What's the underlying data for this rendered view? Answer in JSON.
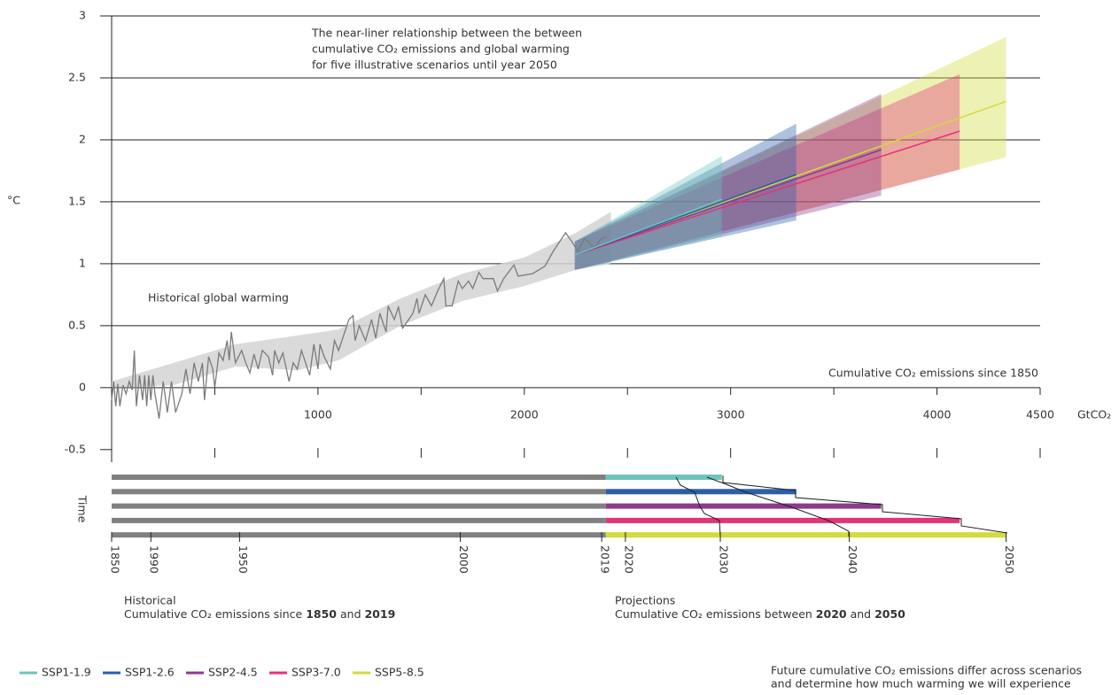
{
  "chart_data": {
    "type": "line",
    "annotation": [
      "The near-liner relationship between the between",
      "cumulative CO₂ emissions and global warming",
      "for five illustrative scenarios until year 2050"
    ],
    "ylabel": "°C",
    "xlabel": "GtCO₂",
    "x_axis_title": "Cumulative CO₂ emissions since 1850",
    "historical_label": "Historical global warming",
    "ylim": [
      -0.6,
      3
    ],
    "yticks": [
      -0.5,
      0,
      0.5,
      1,
      1.5,
      2,
      2.5,
      3
    ],
    "grid": true,
    "xlim": [
      0,
      4500
    ],
    "xticks": [
      1000,
      2000,
      3000,
      4000,
      4500
    ],
    "xminorticks": [
      500,
      1500,
      2500,
      3500
    ],
    "historical": {
      "color": "#7a7a7a",
      "x": [
        0,
        10,
        20,
        30,
        40,
        55,
        70,
        85,
        100,
        110,
        120,
        135,
        150,
        160,
        170,
        180,
        190,
        200,
        210,
        230,
        250,
        270,
        290,
        310,
        340,
        360,
        380,
        400,
        420,
        440,
        450,
        470,
        490,
        500,
        520,
        540,
        560,
        570,
        580,
        600,
        630,
        650,
        670,
        690,
        710,
        730,
        760,
        780,
        790,
        810,
        830,
        860,
        880,
        900,
        920,
        940,
        960,
        980,
        1000,
        1010,
        1030,
        1060,
        1080,
        1100,
        1130,
        1150,
        1170,
        1180,
        1200,
        1230,
        1260,
        1280,
        1300,
        1330,
        1340,
        1370,
        1390,
        1410,
        1440,
        1460,
        1480,
        1490,
        1520,
        1550,
        1580,
        1610,
        1620,
        1650,
        1680,
        1700,
        1730,
        1750,
        1780,
        1800,
        1850,
        1870,
        1900,
        1950,
        1970,
        2040,
        2100,
        2140,
        2180,
        2200,
        2230,
        2260,
        2290,
        2310,
        2340,
        2370,
        2400
      ],
      "values": [
        -0.1,
        0.05,
        -0.15,
        0.03,
        -0.15,
        0.02,
        -0.05,
        0.05,
        -0.02,
        0.3,
        -0.15,
        0.1,
        -0.1,
        0.1,
        -0.15,
        0.1,
        -0.1,
        0.1,
        -0.05,
        -0.25,
        0.05,
        -0.2,
        0.05,
        -0.2,
        -0.05,
        0.15,
        -0.05,
        0.2,
        0.05,
        0.2,
        -0.1,
        0.25,
        0.15,
        0.0,
        0.28,
        0.22,
        0.38,
        0.22,
        0.45,
        0.2,
        0.3,
        0.2,
        0.12,
        0.27,
        0.15,
        0.3,
        0.25,
        0.1,
        0.3,
        0.2,
        0.28,
        0.05,
        0.2,
        0.15,
        0.3,
        0.2,
        0.1,
        0.35,
        0.15,
        0.35,
        0.25,
        0.15,
        0.38,
        0.3,
        0.45,
        0.55,
        0.58,
        0.38,
        0.5,
        0.38,
        0.55,
        0.4,
        0.6,
        0.45,
        0.66,
        0.55,
        0.65,
        0.48,
        0.55,
        0.6,
        0.72,
        0.6,
        0.75,
        0.66,
        0.78,
        0.88,
        0.66,
        0.66,
        0.86,
        0.8,
        0.86,
        0.8,
        0.93,
        0.88,
        0.88,
        0.78,
        0.88,
        0.99,
        0.9,
        0.92,
        0.98,
        1.1,
        1.2,
        1.25,
        1.18,
        1.1,
        1.2,
        1.18,
        1.12,
        1.2,
        1.22
      ],
      "band": {
        "color": "#d4d4d4",
        "x": [
          0,
          300,
          600,
          900,
          1100,
          1400,
          1700,
          2000,
          2250,
          2420
        ],
        "low": [
          0,
          0.02,
          0.17,
          0.14,
          0.22,
          0.5,
          0.7,
          0.82,
          0.95,
          1.0
        ],
        "high": [
          0.05,
          0.2,
          0.35,
          0.42,
          0.47,
          0.72,
          0.92,
          1.05,
          1.25,
          1.42
        ]
      }
    },
    "series": [
      {
        "name": "SSP1-1.9",
        "color": "#6cc4bd",
        "x": [
          2245,
          2957
        ],
        "values": [
          1.07,
          1.52
        ],
        "low": [
          0.95,
          1.22
        ],
        "high": [
          1.18,
          1.87
        ]
      },
      {
        "name": "SSP1-2.6",
        "color": "#2b5fa8",
        "x": [
          2245,
          3318
        ],
        "values": [
          1.07,
          1.72
        ],
        "low": [
          0.95,
          1.35
        ],
        "high": [
          1.18,
          2.13
        ]
      },
      {
        "name": "SSP2-4.5",
        "color": "#8c3a8c",
        "x": [
          2245,
          3730
        ],
        "values": [
          1.07,
          1.92
        ],
        "low": [
          0.95,
          1.55
        ],
        "high": [
          1.18,
          2.37
        ]
      },
      {
        "name": "SSP3-7.0",
        "color": "#e3337a",
        "x": [
          2245,
          4110
        ],
        "values": [
          1.07,
          2.07
        ],
        "low": [
          0.95,
          1.76
        ],
        "high": [
          1.18,
          2.53
        ]
      },
      {
        "name": "SSP5-8.5",
        "color": "#d3db3a",
        "x": [
          2245,
          4335
        ],
        "values": [
          1.07,
          2.31
        ],
        "low": [
          0.95,
          1.86
        ],
        "high": [
          1.18,
          2.83
        ]
      }
    ],
    "time": {
      "label": "Time",
      "historical_end": 2395,
      "years": [
        "1850",
        "1990",
        "1950",
        "2000",
        "2019",
        "2020",
        "2030",
        "2040",
        "2050"
      ],
      "emissions": [
        0,
        190,
        620,
        1690,
        2375,
        2490,
        2950,
        3575,
        4335
      ]
    },
    "footer": {
      "historical_title": "Historical",
      "historical_text": [
        "Cumulative CO₂ emissions since ",
        "1850",
        " and ",
        "2019"
      ],
      "projections_title": "Projections",
      "projections_text": [
        "Cumulative CO₂ emissions between ",
        "2020",
        " and ",
        "2050"
      ],
      "note": [
        "Future cumulative CO₂ emissions differ across scenarios",
        "and determine how much warming we will experience"
      ]
    }
  }
}
